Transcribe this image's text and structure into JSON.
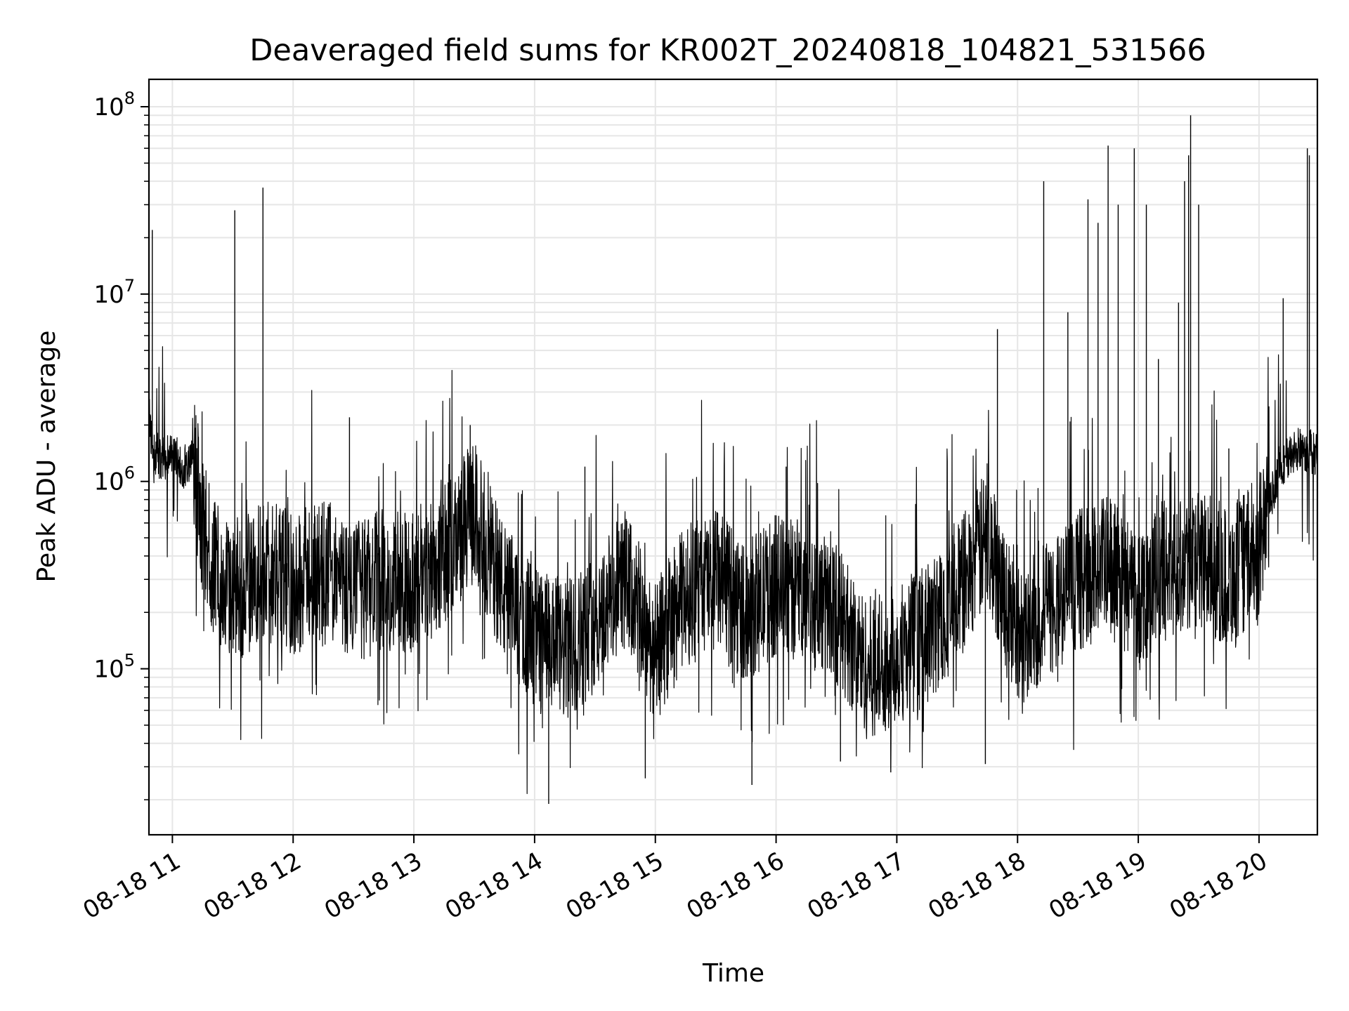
{
  "chart_data": {
    "type": "line",
    "title": "Deaveraged field sums for KR002T_20240818_104821_531566",
    "xlabel": "Time",
    "ylabel": "Peak ADU - average",
    "yscale": "log",
    "ylim": [
      13000,
      140000000
    ],
    "xlim": [
      "2024-08-18 10:48:21",
      "2024-08-18 20:29:00"
    ],
    "grid": true,
    "line_color": "#000000",
    "grid_color": "#e6e6e6",
    "x_ticks": [
      {
        "value": "2024-08-18 11:00",
        "label": "08-18 11"
      },
      {
        "value": "2024-08-18 12:00",
        "label": "08-18 12"
      },
      {
        "value": "2024-08-18 13:00",
        "label": "08-18 13"
      },
      {
        "value": "2024-08-18 14:00",
        "label": "08-18 14"
      },
      {
        "value": "2024-08-18 15:00",
        "label": "08-18 15"
      },
      {
        "value": "2024-08-18 16:00",
        "label": "08-18 16"
      },
      {
        "value": "2024-08-18 17:00",
        "label": "08-18 17"
      },
      {
        "value": "2024-08-18 18:00",
        "label": "08-18 18"
      },
      {
        "value": "2024-08-18 19:00",
        "label": "08-18 19"
      },
      {
        "value": "2024-08-18 20:00",
        "label": "08-18 20"
      }
    ],
    "y_ticks": [
      {
        "value": 100000,
        "base": "10",
        "exp": "5"
      },
      {
        "value": 1000000,
        "base": "10",
        "exp": "6"
      },
      {
        "value": 10000000,
        "base": "10",
        "exp": "7"
      },
      {
        "value": 100000000,
        "base": "10",
        "exp": "8"
      }
    ],
    "series": [
      {
        "x": [
          "2024-08-18 10:48",
          "2024-08-18 10:50",
          "2024-08-18 10:55",
          "2024-08-18 11:00",
          "2024-08-18 11:05",
          "2024-08-18 11:10",
          "2024-08-18 11:15",
          "2024-08-18 11:20",
          "2024-08-18 11:30",
          "2024-08-18 11:40",
          "2024-08-18 11:50",
          "2024-08-18 12:00",
          "2024-08-18 12:15",
          "2024-08-18 12:30",
          "2024-08-18 12:45",
          "2024-08-18 13:00",
          "2024-08-18 13:15",
          "2024-08-18 13:30",
          "2024-08-18 13:45",
          "2024-08-18 14:00",
          "2024-08-18 14:15",
          "2024-08-18 14:30",
          "2024-08-18 14:45",
          "2024-08-18 15:00",
          "2024-08-18 15:15",
          "2024-08-18 15:30",
          "2024-08-18 15:45",
          "2024-08-18 16:00",
          "2024-08-18 16:15",
          "2024-08-18 16:30",
          "2024-08-18 16:45",
          "2024-08-18 17:00",
          "2024-08-18 17:15",
          "2024-08-18 17:30",
          "2024-08-18 17:45",
          "2024-08-18 18:00",
          "2024-08-18 18:15",
          "2024-08-18 18:30",
          "2024-08-18 18:45",
          "2024-08-18 19:00",
          "2024-08-18 19:15",
          "2024-08-18 19:30",
          "2024-08-18 19:45",
          "2024-08-18 20:00",
          "2024-08-18 20:10",
          "2024-08-18 20:20",
          "2024-08-18 20:29"
        ],
        "y": [
          2500000,
          1500000,
          1300000,
          1400000,
          1200000,
          1300000,
          600000,
          350000,
          250000,
          300000,
          350000,
          280000,
          350000,
          250000,
          300000,
          280000,
          400000,
          700000,
          250000,
          150000,
          120000,
          180000,
          300000,
          120000,
          250000,
          300000,
          200000,
          280000,
          250000,
          200000,
          100000,
          120000,
          150000,
          250000,
          500000,
          150000,
          200000,
          300000,
          350000,
          250000,
          350000,
          400000,
          300000,
          450000,
          1200000,
          1500000,
          1400000
        ]
      }
    ],
    "spikes": [
      {
        "x": "2024-08-18 10:50",
        "y": 22000000
      },
      {
        "x": "2024-08-18 11:31",
        "y": 28000000
      },
      {
        "x": "2024-08-18 12:28",
        "y": 2200000
      },
      {
        "x": "2024-08-18 13:28",
        "y": 2000000
      },
      {
        "x": "2024-08-18 14:25",
        "y": 1200000
      },
      {
        "x": "2024-08-18 16:05",
        "y": 1200000
      },
      {
        "x": "2024-08-18 17:50",
        "y": 6500000
      },
      {
        "x": "2024-08-18 18:13",
        "y": 40000000
      },
      {
        "x": "2024-08-18 18:25",
        "y": 8000000
      },
      {
        "x": "2024-08-18 18:35",
        "y": 32000000
      },
      {
        "x": "2024-08-18 18:40",
        "y": 24000000
      },
      {
        "x": "2024-08-18 18:45",
        "y": 62000000
      },
      {
        "x": "2024-08-18 18:50",
        "y": 30000000
      },
      {
        "x": "2024-08-18 18:58",
        "y": 60000000
      },
      {
        "x": "2024-08-18 19:04",
        "y": 30000000
      },
      {
        "x": "2024-08-18 19:10",
        "y": 4500000
      },
      {
        "x": "2024-08-18 19:20",
        "y": 9000000
      },
      {
        "x": "2024-08-18 19:23",
        "y": 40000000
      },
      {
        "x": "2024-08-18 19:25",
        "y": 55000000
      },
      {
        "x": "2024-08-18 19:26",
        "y": 90000000
      },
      {
        "x": "2024-08-18 19:30",
        "y": 30000000
      },
      {
        "x": "2024-08-18 19:45",
        "y": 1500000
      },
      {
        "x": "2024-08-18 20:12",
        "y": 9500000
      },
      {
        "x": "2024-08-18 20:24",
        "y": 60000000
      },
      {
        "x": "2024-08-18 20:25",
        "y": 55000000
      }
    ],
    "dips": [
      {
        "x": "2024-08-18 11:45",
        "y": 37000000
      },
      {
        "x": "2024-08-18 14:07",
        "y": 19000
      },
      {
        "x": "2024-08-18 14:55",
        "y": 26000
      },
      {
        "x": "2024-08-18 15:48",
        "y": 24000
      },
      {
        "x": "2024-08-18 16:32",
        "y": 32000
      },
      {
        "x": "2024-08-18 16:57",
        "y": 28000
      },
      {
        "x": "2024-08-18 17:44",
        "y": 31000
      }
    ]
  }
}
